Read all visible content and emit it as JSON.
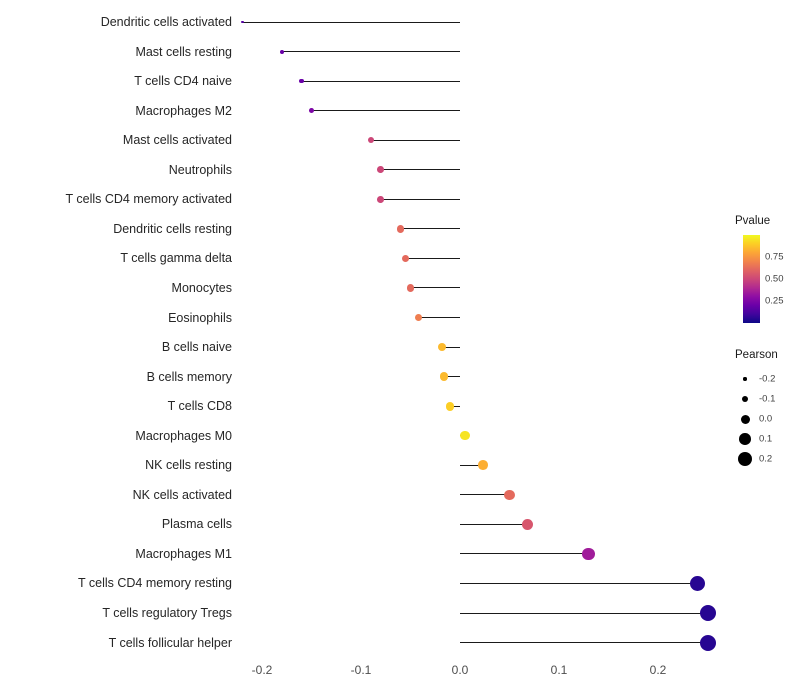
{
  "chart_data": {
    "type": "lollipop",
    "title": "",
    "xlabel": "",
    "ylabel": "",
    "x_ticks": [
      -0.2,
      -0.1,
      0.0,
      0.1,
      0.2
    ],
    "xlim": [
      -0.27,
      0.27
    ],
    "legend_position": "right",
    "grid": false,
    "points": [
      {
        "label": "Dendritic cells activated",
        "pearson": -0.22,
        "pvalue": 0.15
      },
      {
        "label": "Mast cells resting",
        "pearson": -0.18,
        "pvalue": 0.2
      },
      {
        "label": "T cells CD4 naive",
        "pearson": -0.16,
        "pvalue": 0.2
      },
      {
        "label": "Macrophages M2",
        "pearson": -0.15,
        "pvalue": 0.25
      },
      {
        "label": "Mast cells activated",
        "pearson": -0.09,
        "pvalue": 0.5
      },
      {
        "label": "Neutrophils",
        "pearson": -0.08,
        "pvalue": 0.5
      },
      {
        "label": "T cells CD4 memory activated",
        "pearson": -0.08,
        "pvalue": 0.5
      },
      {
        "label": "Dendritic cells resting",
        "pearson": -0.06,
        "pvalue": 0.62
      },
      {
        "label": "T cells gamma delta",
        "pearson": -0.055,
        "pvalue": 0.62
      },
      {
        "label": "Monocytes",
        "pearson": -0.05,
        "pvalue": 0.62
      },
      {
        "label": "Eosinophils",
        "pearson": -0.042,
        "pvalue": 0.68
      },
      {
        "label": "B cells naive",
        "pearson": -0.018,
        "pvalue": 0.85
      },
      {
        "label": "B cells memory",
        "pearson": -0.016,
        "pvalue": 0.85
      },
      {
        "label": "T cells CD8",
        "pearson": -0.01,
        "pvalue": 0.9
      },
      {
        "label": "Macrophages M0",
        "pearson": 0.005,
        "pvalue": 0.95
      },
      {
        "label": "NK cells resting",
        "pearson": 0.023,
        "pvalue": 0.82
      },
      {
        "label": "NK cells activated",
        "pearson": 0.05,
        "pvalue": 0.62
      },
      {
        "label": "Plasma cells",
        "pearson": 0.068,
        "pvalue": 0.55
      },
      {
        "label": "Macrophages M1",
        "pearson": 0.13,
        "pvalue": 0.35
      },
      {
        "label": "T cells CD4 memory resting",
        "pearson": 0.24,
        "pvalue": 0.05
      },
      {
        "label": "T cells regulatory  Tregs",
        "pearson": 0.25,
        "pvalue": 0.05
      },
      {
        "label": "T cells follicular helper",
        "pearson": 0.25,
        "pvalue": 0.05
      }
    ]
  },
  "legend": {
    "pvalue_title": "Pvalue",
    "pvalue_ticks": [
      {
        "label": "0.75",
        "value": 0.75
      },
      {
        "label": "0.50",
        "value": 0.5
      },
      {
        "label": "0.25",
        "value": 0.25
      }
    ],
    "pearson_title": "Pearson",
    "pearson_ticks": [
      {
        "label": "-0.2",
        "value": -0.2
      },
      {
        "label": "-0.1",
        "value": -0.1
      },
      {
        "label": "0.0",
        "value": 0.0
      },
      {
        "label": "0.1",
        "value": 0.1
      },
      {
        "label": "0.2",
        "value": 0.2
      }
    ]
  },
  "colors": {
    "stem": "#1a1a1a",
    "label_text": "#262626",
    "axis_text": "#4d4d4d",
    "size_legend_dot": "#000000",
    "plasma_stops": [
      "#0d0887",
      "#41049d",
      "#6a00a8",
      "#8f0da4",
      "#b12a90",
      "#cc4778",
      "#e16462",
      "#f2844b",
      "#fca636",
      "#fcce25",
      "#f0f921"
    ]
  }
}
